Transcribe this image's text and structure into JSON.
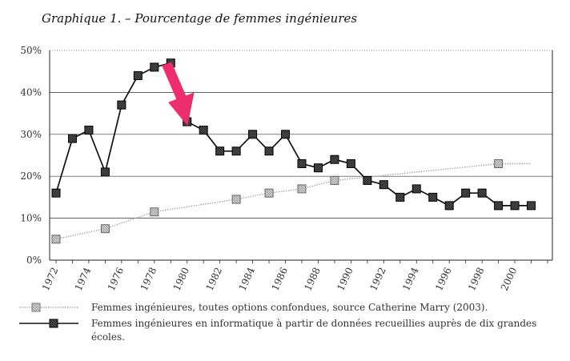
{
  "title": "Graphique 1. – Pourcentage de femmes ingénieures",
  "colors": {
    "series_all": "#aaaaaa",
    "series_it": "#111111",
    "marker_all_fill": "#cfcfcf",
    "marker_it_fill": "#1a1a1a",
    "arrow": "#ee2d6c"
  },
  "chart_data": {
    "type": "line",
    "title": "Graphique 1. – Pourcentage de femmes ingénieures",
    "xlabel": "",
    "ylabel": "",
    "xlim": [
      1972,
      2002
    ],
    "ylim": [
      0,
      50
    ],
    "x_ticks": [
      "1972",
      "1974",
      "1976",
      "1978",
      "1980",
      "1982",
      "1984",
      "1986",
      "1988",
      "1990",
      "1992",
      "1994",
      "1996",
      "1998",
      "2000"
    ],
    "y_ticks": [
      "0%",
      "10%",
      "20%",
      "30%",
      "40%",
      "50%"
    ],
    "series": [
      {
        "name": "Femmes ingénieures, toutes options confondues, source Catherine Marry (2003).",
        "style": "dotted",
        "x": [
          1972,
          1975,
          1978,
          1983,
          1985,
          1987,
          1989,
          1999
        ],
        "y": [
          5,
          7.5,
          11.5,
          14.5,
          16,
          17,
          19,
          23
        ],
        "trend_end": [
          2001,
          23
        ]
      },
      {
        "name": "Femmes ingénieures en informatique à partir de données recueillies auprès de dix grandes écoles.",
        "style": "solid",
        "x": [
          1972,
          1973,
          1974,
          1975,
          1976,
          1977,
          1978,
          1979,
          1980,
          1981,
          1982,
          1983,
          1984,
          1985,
          1986,
          1987,
          1988,
          1989,
          1990,
          1991,
          1992,
          1993,
          1994,
          1995,
          1996,
          1997,
          1998,
          1999,
          2000,
          2001
        ],
        "y": [
          16,
          29,
          31,
          21,
          37,
          44,
          46,
          47,
          33,
          31,
          26,
          26,
          30,
          26,
          30,
          23,
          22,
          24,
          23,
          19,
          18,
          15,
          17,
          15,
          13,
          16,
          16,
          13,
          13,
          13
        ]
      }
    ],
    "grid": true,
    "legend_position": "bottom",
    "annotation": {
      "type": "arrow",
      "target_x": 1980.5,
      "target_y": 37
    }
  },
  "legend": [
    {
      "label": "Femmes ingénieures, toutes options confondues, source Catherine Marry (2003)."
    },
    {
      "label": "Femmes ingénieures en informatique à partir de données recueillies auprès de dix grandes écoles."
    }
  ]
}
